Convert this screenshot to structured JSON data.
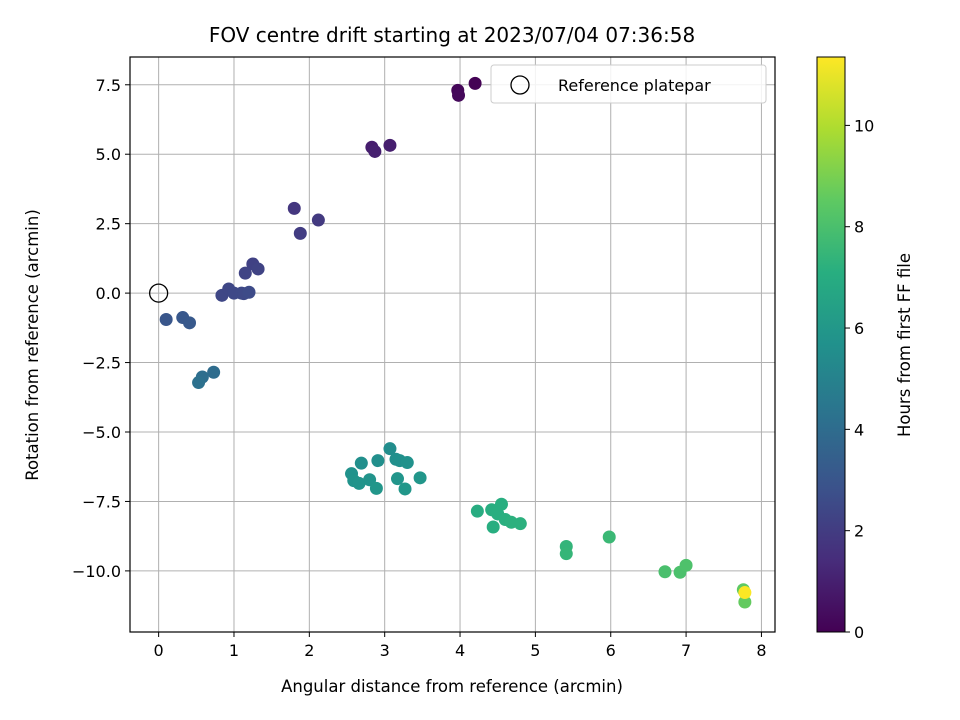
{
  "chart_data": {
    "type": "scatter",
    "title": "FOV centre drift starting at 2023/07/04 07:36:58",
    "xlabel": "Angular distance from reference (arcmin)",
    "ylabel": "Rotation from reference (arcmin)",
    "xlim": [
      -0.38,
      8.18
    ],
    "ylim": [
      -12.2,
      8.5
    ],
    "xticks": [
      0,
      1,
      2,
      3,
      4,
      5,
      6,
      7,
      8
    ],
    "xtick_labels": [
      "0",
      "1",
      "2",
      "3",
      "4",
      "5",
      "6",
      "7",
      "8"
    ],
    "yticks": [
      7.5,
      5.0,
      2.5,
      0.0,
      -2.5,
      -5.0,
      -7.5,
      -10.0
    ],
    "ytick_labels": [
      "7.5",
      "5.0",
      "2.5",
      "0.0",
      "−2.5",
      "−5.0",
      "−7.5",
      "−10.0"
    ],
    "grid": true,
    "legend": {
      "position": "top-right",
      "entries": [
        "Reference platepar"
      ]
    },
    "reference_point": {
      "x": 0,
      "y": 0,
      "label": "Reference platepar"
    },
    "colorbar": {
      "label": "Hours from first FF file",
      "range": [
        0,
        11.35
      ],
      "ticks": [
        0,
        2,
        4,
        6,
        8,
        10
      ],
      "tick_labels": [
        "0",
        "2",
        "4",
        "6",
        "8",
        "10"
      ],
      "colormap": "viridis"
    },
    "points": [
      {
        "x": 4.2,
        "y": 7.55,
        "c": 0.05
      },
      {
        "x": 3.97,
        "y": 7.3,
        "c": 0.15
      },
      {
        "x": 3.98,
        "y": 7.12,
        "c": 0.25
      },
      {
        "x": 2.83,
        "y": 5.25,
        "c": 0.9
      },
      {
        "x": 2.87,
        "y": 5.1,
        "c": 1.0
      },
      {
        "x": 3.07,
        "y": 5.32,
        "c": 0.95
      },
      {
        "x": 1.8,
        "y": 3.05,
        "c": 1.8
      },
      {
        "x": 2.12,
        "y": 2.63,
        "c": 1.9
      },
      {
        "x": 1.88,
        "y": 2.15,
        "c": 2.0
      },
      {
        "x": 1.25,
        "y": 1.05,
        "c": 2.2
      },
      {
        "x": 1.32,
        "y": 0.87,
        "c": 2.25
      },
      {
        "x": 1.15,
        "y": 0.72,
        "c": 2.3
      },
      {
        "x": 0.84,
        "y": -0.08,
        "c": 2.4
      },
      {
        "x": 0.93,
        "y": 0.15,
        "c": 2.4
      },
      {
        "x": 1.0,
        "y": 0.0,
        "c": 2.45
      },
      {
        "x": 1.1,
        "y": 0.0,
        "c": 2.5
      },
      {
        "x": 1.13,
        "y": -0.02,
        "c": 2.5
      },
      {
        "x": 1.2,
        "y": 0.03,
        "c": 2.55
      },
      {
        "x": 0.1,
        "y": -0.95,
        "c": 3.0
      },
      {
        "x": 0.32,
        "y": -0.88,
        "c": 3.1
      },
      {
        "x": 0.41,
        "y": -1.07,
        "c": 3.15
      },
      {
        "x": 0.73,
        "y": -2.85,
        "c": 4.0
      },
      {
        "x": 0.58,
        "y": -3.02,
        "c": 4.1
      },
      {
        "x": 0.53,
        "y": -3.22,
        "c": 4.2
      },
      {
        "x": 3.07,
        "y": -5.6,
        "c": 5.5
      },
      {
        "x": 2.91,
        "y": -6.03,
        "c": 5.6
      },
      {
        "x": 3.15,
        "y": -5.98,
        "c": 5.6
      },
      {
        "x": 3.2,
        "y": -6.03,
        "c": 5.65
      },
      {
        "x": 3.3,
        "y": -6.1,
        "c": 5.7
      },
      {
        "x": 2.69,
        "y": -6.12,
        "c": 5.6
      },
      {
        "x": 2.56,
        "y": -6.5,
        "c": 5.7
      },
      {
        "x": 2.59,
        "y": -6.75,
        "c": 5.75
      },
      {
        "x": 2.66,
        "y": -6.85,
        "c": 5.8
      },
      {
        "x": 2.8,
        "y": -6.72,
        "c": 5.8
      },
      {
        "x": 3.17,
        "y": -6.68,
        "c": 5.85
      },
      {
        "x": 3.47,
        "y": -6.65,
        "c": 5.9
      },
      {
        "x": 2.89,
        "y": -7.03,
        "c": 5.9
      },
      {
        "x": 3.27,
        "y": -7.05,
        "c": 5.95
      },
      {
        "x": 4.23,
        "y": -7.85,
        "c": 7.0
      },
      {
        "x": 4.42,
        "y": -7.8,
        "c": 7.05
      },
      {
        "x": 4.55,
        "y": -7.6,
        "c": 7.1
      },
      {
        "x": 4.5,
        "y": -7.95,
        "c": 7.1
      },
      {
        "x": 4.6,
        "y": -8.15,
        "c": 7.15
      },
      {
        "x": 4.68,
        "y": -8.25,
        "c": 7.2
      },
      {
        "x": 4.8,
        "y": -8.3,
        "c": 7.2
      },
      {
        "x": 4.44,
        "y": -8.42,
        "c": 7.1
      },
      {
        "x": 5.41,
        "y": -9.12,
        "c": 7.4
      },
      {
        "x": 5.41,
        "y": -9.38,
        "c": 7.45
      },
      {
        "x": 5.98,
        "y": -8.78,
        "c": 7.6
      },
      {
        "x": 6.72,
        "y": -10.03,
        "c": 8.0
      },
      {
        "x": 6.92,
        "y": -10.05,
        "c": 8.05
      },
      {
        "x": 7.0,
        "y": -9.8,
        "c": 8.1
      },
      {
        "x": 7.76,
        "y": -10.68,
        "c": 8.5
      },
      {
        "x": 7.78,
        "y": -11.12,
        "c": 8.6
      },
      {
        "x": 7.78,
        "y": -10.78,
        "c": 11.3
      }
    ]
  }
}
